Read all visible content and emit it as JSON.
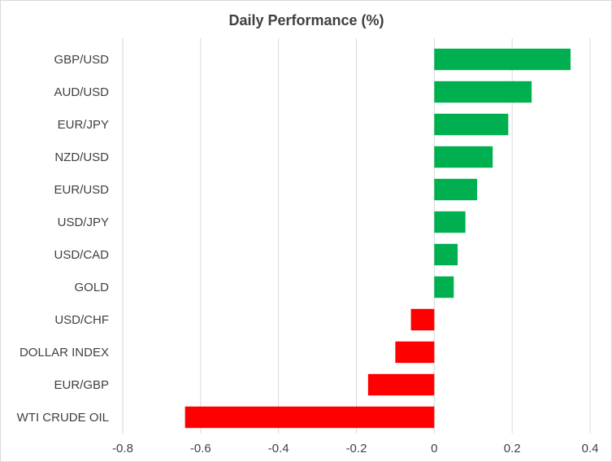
{
  "chart_data": {
    "type": "bar",
    "orientation": "horizontal",
    "title": "Daily Performance (%)",
    "xlabel": "",
    "ylabel": "",
    "xlim": [
      -0.8,
      0.4
    ],
    "x_ticks": [
      "-0.8",
      "-0.6",
      "-0.4",
      "-0.2",
      "0",
      "0.2",
      "0.4"
    ],
    "x_tick_values": [
      -0.8,
      -0.6,
      -0.4,
      -0.2,
      0,
      0.2,
      0.4
    ],
    "grid": true,
    "legend": "none",
    "categories": [
      "GBP/USD",
      "AUD/USD",
      "EUR/JPY",
      "NZD/USD",
      "EUR/USD",
      "USD/JPY",
      "USD/CAD",
      "GOLD",
      "USD/CHF",
      "DOLLAR INDEX",
      "EUR/GBP",
      "WTI CRUDE OIL"
    ],
    "values": [
      0.35,
      0.25,
      0.19,
      0.15,
      0.11,
      0.08,
      0.06,
      0.05,
      -0.06,
      -0.1,
      -0.17,
      -0.64
    ],
    "colors": {
      "positive": "#00b050",
      "negative": "#ff0000"
    }
  }
}
